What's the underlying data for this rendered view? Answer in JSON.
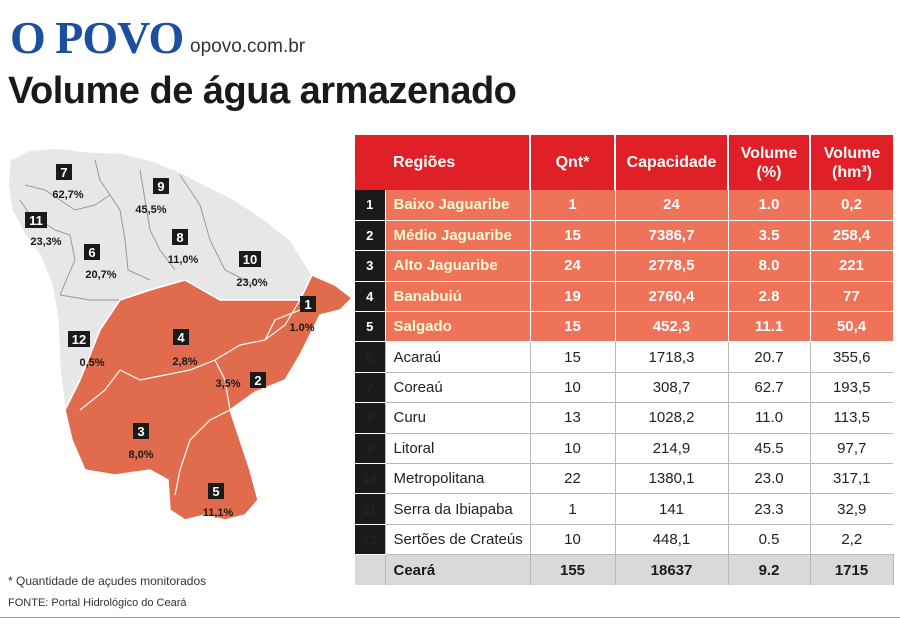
{
  "header": {
    "logo": "O POVO",
    "site": "opovo.com.br",
    "title": "Volume de água armazenado"
  },
  "colors": {
    "logo": "#1d4fa0",
    "header_red": "#e11f26",
    "highlight": "#ef7358",
    "map_highlight": "#e06b4d",
    "map_gray": "#e7e7e7"
  },
  "table": {
    "headers": [
      "Regiões",
      "Qnt*",
      "Capacidade",
      "Volume (%)",
      "Volume (hm³)"
    ],
    "rows": [
      {
        "n": "1",
        "region": "Baixo Jaguaribe",
        "qnt": "1",
        "cap": "24",
        "vol_pct": "1.0",
        "vol_hm3": "0,2"
      },
      {
        "n": "2",
        "region": "Médio Jaguaribe",
        "qnt": "15",
        "cap": "7386,7",
        "vol_pct": "3.5",
        "vol_hm3": "258,4"
      },
      {
        "n": "3",
        "region": "Alto Jaguaribe",
        "qnt": "24",
        "cap": "2778,5",
        "vol_pct": "8.0",
        "vol_hm3": "221"
      },
      {
        "n": "4",
        "region": "Banabuiú",
        "qnt": "19",
        "cap": "2760,4",
        "vol_pct": "2.8",
        "vol_hm3": "77"
      },
      {
        "n": "5",
        "region": "Salgado",
        "qnt": "15",
        "cap": "452,3",
        "vol_pct": "11.1",
        "vol_hm3": "50,4"
      },
      {
        "n": "6",
        "region": "Acaraú",
        "qnt": "15",
        "cap": "1718,3",
        "vol_pct": "20.7",
        "vol_hm3": "355,6"
      },
      {
        "n": "7",
        "region": "Coreaú",
        "qnt": "10",
        "cap": "308,7",
        "vol_pct": "62.7",
        "vol_hm3": "193,5"
      },
      {
        "n": "8",
        "region": "Curu",
        "qnt": "13",
        "cap": "1028,2",
        "vol_pct": "11.0",
        "vol_hm3": "113,5"
      },
      {
        "n": "9",
        "region": "Litoral",
        "qnt": "10",
        "cap": "214,9",
        "vol_pct": "45.5",
        "vol_hm3": "97,7"
      },
      {
        "n": "10",
        "region": "Metropolitana",
        "qnt": "22",
        "cap": "1380,1",
        "vol_pct": "23.0",
        "vol_hm3": "317,1"
      },
      {
        "n": "11",
        "region": "Serra da Ibiapaba",
        "qnt": "1",
        "cap": "141",
        "vol_pct": "23.3",
        "vol_hm3": "32,9"
      },
      {
        "n": "12",
        "region": "Sertões de Crateús",
        "qnt": "10",
        "cap": "448,1",
        "vol_pct": "0.5",
        "vol_hm3": "2,2"
      }
    ],
    "total": {
      "region": "Ceará",
      "qnt": "155",
      "cap": "18637",
      "vol_pct": "9.2",
      "vol_hm3": "1715"
    }
  },
  "map": {
    "labels": [
      {
        "n": "1",
        "pct": "1.0%"
      },
      {
        "n": "2",
        "pct": "3,5%"
      },
      {
        "n": "3",
        "pct": "8,0%"
      },
      {
        "n": "4",
        "pct": "2,8%"
      },
      {
        "n": "5",
        "pct": "11,1%"
      },
      {
        "n": "6",
        "pct": "20,7%"
      },
      {
        "n": "7",
        "pct": "62,7%"
      },
      {
        "n": "8",
        "pct": "11,0%"
      },
      {
        "n": "9",
        "pct": "45,5%"
      },
      {
        "n": "10",
        "pct": "23,0%"
      },
      {
        "n": "11",
        "pct": "23,3%"
      },
      {
        "n": "12",
        "pct": "0,5%"
      }
    ]
  },
  "footer": {
    "note": "* Quantidade de açudes monitorados",
    "source": "FONTE: Portal Hidrológico do Ceará"
  }
}
